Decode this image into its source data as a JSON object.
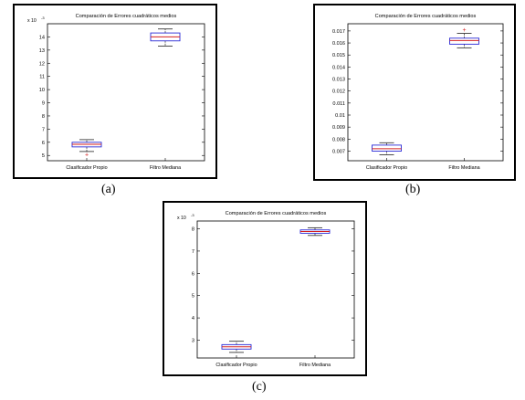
{
  "chart_data": [
    {
      "type": "box",
      "panel_caption": "(a)",
      "title": "Comparación de Errores cuadráticos medios",
      "categories": [
        "Clasificador Propio",
        "Filtro Mediana"
      ],
      "y_ticks": [
        "5",
        "6",
        "7",
        "8",
        "9",
        "10",
        "11",
        "12",
        "13",
        "14"
      ],
      "y_exponent": "x 10",
      "y_exponent_power": "-3",
      "ylim": [
        4.6,
        15.0
      ],
      "grid": false,
      "legend": "none",
      "boxes": [
        {
          "whisker_low": 5.3,
          "q1": 5.65,
          "median": 5.85,
          "q3": 6.0,
          "whisker_high": 6.2,
          "outliers": [
            5.1
          ]
        },
        {
          "whisker_low": 13.3,
          "q1": 13.7,
          "median": 14.0,
          "q3": 14.3,
          "whisker_high": 14.6,
          "outliers": []
        }
      ],
      "colors": {
        "box": "#2a2ad6",
        "median": "#d42020",
        "whisker": "#000000",
        "outlier": "#d42020"
      }
    },
    {
      "type": "box",
      "panel_caption": "(b)",
      "title": "Comparación de Errores cuadráticos medios",
      "categories": [
        "Clasificador Propio",
        "Filtro Mediana"
      ],
      "y_ticks": [
        "0.007",
        "0.008",
        "0.009",
        "0.01",
        "0.011",
        "0.012",
        "0.013",
        "0.014",
        "0.015",
        "0.016",
        "0.017"
      ],
      "y_exponent": "",
      "y_exponent_power": "",
      "ylim": [
        0.0062,
        0.0176
      ],
      "grid": false,
      "legend": "none",
      "boxes": [
        {
          "whisker_low": 0.0067,
          "q1": 0.007,
          "median": 0.0072,
          "q3": 0.0075,
          "whisker_high": 0.0077,
          "outliers": []
        },
        {
          "whisker_low": 0.0156,
          "q1": 0.0159,
          "median": 0.0162,
          "q3": 0.0164,
          "whisker_high": 0.0168,
          "outliers": [
            0.0171
          ]
        }
      ],
      "colors": {
        "box": "#2a2ad6",
        "median": "#d42020",
        "whisker": "#000000",
        "outlier": "#d42020"
      }
    },
    {
      "type": "box",
      "panel_caption": "(c)",
      "title": "Comparación de Errores cuadráticos medios",
      "categories": [
        "Clasificador Propio",
        "Filtro Mediana"
      ],
      "y_ticks": [
        "3",
        "4",
        "5",
        "6",
        "7",
        "8"
      ],
      "y_exponent": "x 10",
      "y_exponent_power": "-3",
      "ylim": [
        2.2,
        8.35
      ],
      "grid": false,
      "legend": "none",
      "boxes": [
        {
          "whisker_low": 2.45,
          "q1": 2.6,
          "median": 2.7,
          "q3": 2.8,
          "whisker_high": 2.95,
          "outliers": []
        },
        {
          "whisker_low": 7.7,
          "q1": 7.8,
          "median": 7.88,
          "q3": 7.95,
          "whisker_high": 8.05,
          "outliers": []
        }
      ],
      "colors": {
        "box": "#2a2ad6",
        "median": "#d42020",
        "whisker": "#000000",
        "outlier": "#d42020"
      }
    }
  ]
}
